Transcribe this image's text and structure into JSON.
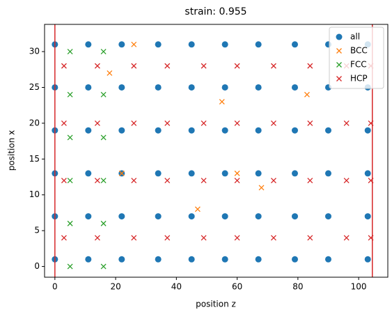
{
  "chart_data": {
    "type": "scatter",
    "title": "strain: 0.955",
    "xlabel": "position z",
    "ylabel": "position x",
    "xlim": [
      -3.4,
      109.6
    ],
    "ylim": [
      -1.5,
      33.8
    ],
    "xticks": [
      0,
      20,
      40,
      60,
      80,
      100
    ],
    "yticks": [
      0,
      5,
      10,
      15,
      20,
      25,
      30
    ],
    "vlines": [
      0,
      104.5
    ],
    "vline_color": "#d62728",
    "legend": "upper right",
    "series": [
      {
        "name": "all",
        "color": "#1f77b4",
        "marker": "o",
        "x": [
          0,
          11,
          22,
          34,
          45,
          56,
          67,
          79,
          90,
          103,
          0,
          11,
          22,
          34,
          45,
          56,
          67,
          79,
          90,
          103,
          0,
          11,
          22,
          34,
          45,
          56,
          67,
          79,
          90,
          103,
          0,
          11,
          22,
          34,
          45,
          56,
          67,
          79,
          90,
          103,
          0,
          11,
          22,
          34,
          45,
          56,
          67,
          79,
          90,
          103,
          0,
          11,
          22,
          34,
          45,
          56,
          67,
          79,
          90,
          103
        ],
        "values": [
          1,
          1,
          1,
          1,
          1,
          1,
          1,
          1,
          1,
          1,
          7,
          7,
          7,
          7,
          7,
          7,
          7,
          7,
          7,
          7,
          13,
          13,
          13,
          13,
          13,
          13,
          13,
          13,
          13,
          13,
          19,
          19,
          19,
          19,
          19,
          19,
          19,
          19,
          19,
          19,
          25,
          25,
          25,
          25,
          25,
          25,
          25,
          25,
          25,
          25,
          31,
          31,
          31,
          31,
          31,
          31,
          31,
          31,
          31,
          31
        ]
      },
      {
        "name": "BCC",
        "color": "#ff7f0e",
        "marker": "x",
        "x": [
          18,
          26,
          47,
          60,
          68,
          83,
          22,
          55
        ],
        "values": [
          27,
          31,
          8,
          13,
          11,
          24,
          13,
          23
        ]
      },
      {
        "name": "FCC",
        "color": "#2ca02c",
        "marker": "x",
        "x": [
          5,
          5,
          5,
          5,
          5,
          5,
          16,
          16,
          16,
          16,
          16,
          16
        ],
        "values": [
          0,
          6,
          12,
          18,
          24,
          30,
          0,
          6,
          12,
          18,
          24,
          30
        ]
      },
      {
        "name": "HCP",
        "color": "#d62728",
        "marker": "x",
        "x": [
          3,
          14,
          26,
          37,
          49,
          60,
          72,
          84,
          96,
          104,
          3,
          14,
          26,
          37,
          49,
          60,
          72,
          84,
          96,
          104,
          3,
          14,
          26,
          37,
          49,
          60,
          72,
          84,
          96,
          104,
          3,
          14,
          26,
          37,
          49,
          60,
          72,
          84,
          96,
          104
        ],
        "values": [
          4,
          4,
          4,
          4,
          4,
          4,
          4,
          4,
          4,
          4,
          12,
          12,
          12,
          12,
          12,
          12,
          12,
          12,
          12,
          12,
          20,
          20,
          20,
          20,
          20,
          20,
          20,
          20,
          20,
          20,
          28,
          28,
          28,
          28,
          28,
          28,
          28,
          28,
          28,
          28
        ]
      }
    ]
  }
}
